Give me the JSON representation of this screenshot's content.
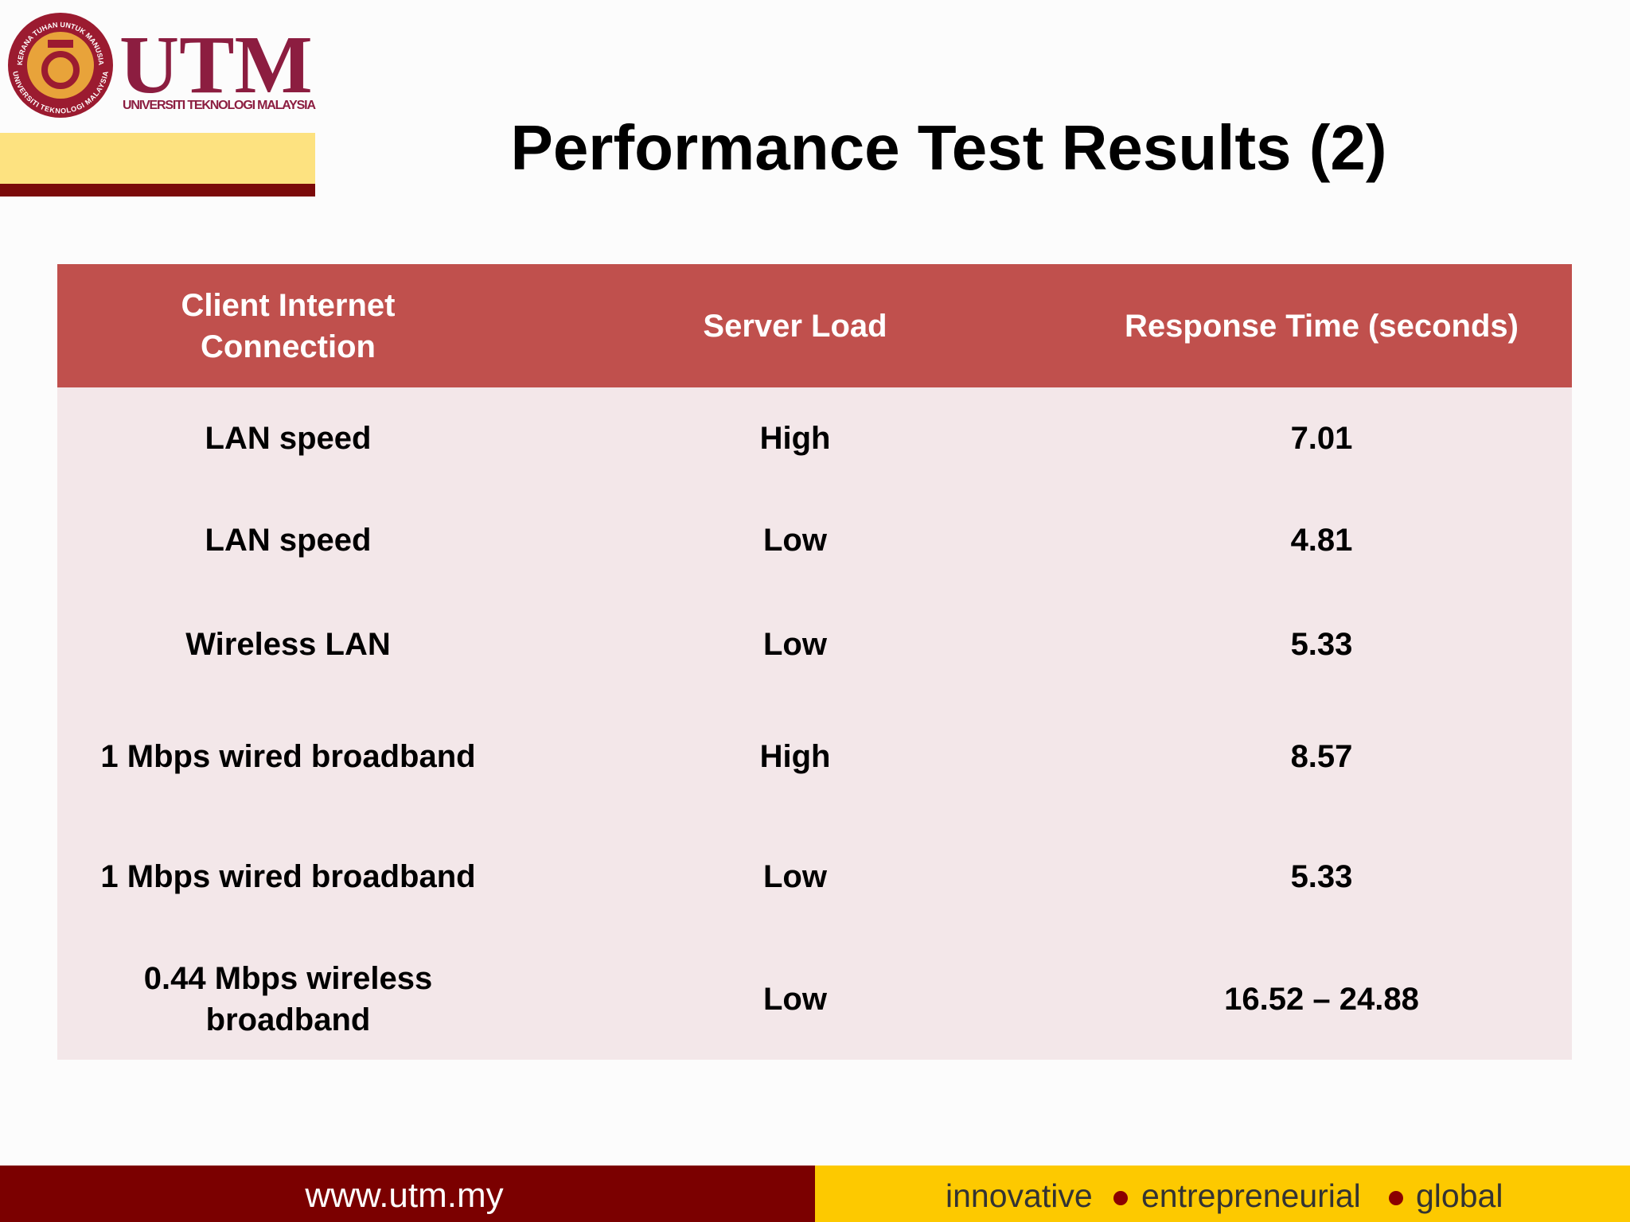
{
  "logo": {
    "acronym": "UTM",
    "name": "UNIVERSITI TEKNOLOGI MALAYSIA",
    "ring_top": "KERANA TUHAN UNTUK MANUSIA",
    "ring_bottom": "UNIVERSITI TEKNOLOGI MALAYSIA"
  },
  "title": "Performance Test Results (2)",
  "table": {
    "header": [
      "Client Internet Connection",
      "Server Load",
      "Response Time (seconds)"
    ],
    "rows": [
      [
        "LAN speed",
        "High",
        "7.01"
      ],
      [
        "LAN speed",
        "Low",
        "4.81"
      ],
      [
        "Wireless LAN",
        "Low",
        "5.33"
      ],
      [
        "1 Mbps wired broadband",
        "High",
        "8.57"
      ],
      [
        "1 Mbps wired broadband",
        "Low",
        "5.33"
      ],
      [
        "0.44 Mbps wireless broadband",
        "Low",
        "16.52 – 24.88"
      ]
    ]
  },
  "footer": {
    "url": "www.utm.my",
    "tagline": [
      "innovative",
      "entrepreneurial",
      "global"
    ]
  }
}
